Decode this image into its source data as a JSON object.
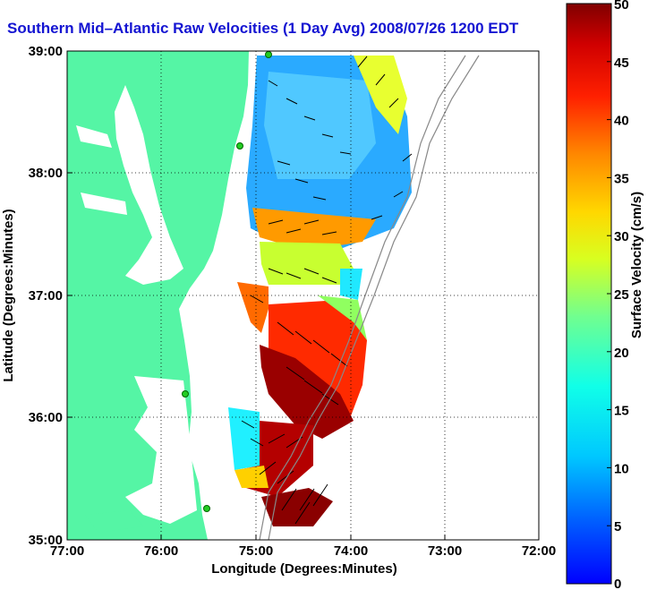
{
  "title": "Southern Mid–Atlantic Raw Velocities (1 Day Avg) 2008/07/26 1200 EDT",
  "map": {
    "xlabel": "Longitude (Degrees:Minutes)",
    "ylabel": "Latitude (Degrees:Minutes)",
    "x_ticks": [
      "77:00",
      "76:00",
      "75:00",
      "74:00",
      "73:00",
      "72:00"
    ],
    "y_ticks": [
      "39:00",
      "38:00",
      "37:00",
      "36:00",
      "35:00"
    ],
    "land_color": "#55f5a5",
    "water_color": "#ffffff",
    "grid": "dotted",
    "radar_site_color": "#22cc22"
  },
  "colorbar": {
    "label": "Surface Velocity (cm/s)",
    "ticks": [
      "0",
      "5",
      "10",
      "15",
      "20",
      "25",
      "30",
      "35",
      "40",
      "45",
      "50"
    ],
    "range": [
      0,
      50
    ],
    "colormap": "jet"
  }
}
